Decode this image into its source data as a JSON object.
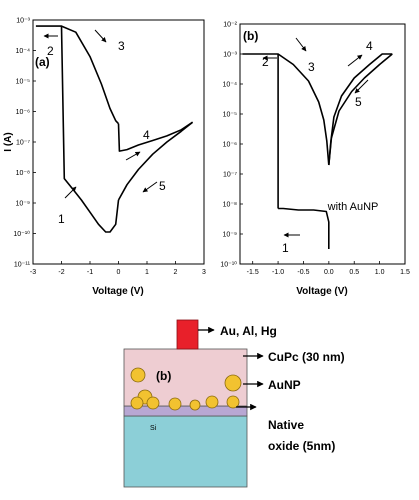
{
  "chart_data": [
    {
      "type": "line",
      "panel_label": "(a)",
      "xlabel": "Voltage (V)",
      "ylabel": "I (A)",
      "xlim": [
        -3,
        3
      ],
      "ylim_log10": [
        -11,
        -3
      ],
      "x_ticks": [
        "-3",
        "-2",
        "-1",
        "0",
        "1",
        "2",
        "3"
      ],
      "y_ticks": [
        "10⁻³",
        "10⁻⁴",
        "10⁻⁵",
        "10⁻⁶",
        "10⁻⁷",
        "10⁻⁸",
        "10⁻⁹",
        "10⁻¹⁰",
        "10⁻¹¹"
      ],
      "curve_labels": [
        "1",
        "2",
        "3",
        "4",
        "5"
      ],
      "series": [
        {
          "x": [
            -2.9,
            -2.1,
            -2.0,
            -1.9,
            -1.6,
            -1.3,
            -1.0,
            -0.7,
            -0.45,
            -0.3,
            -0.1,
            0.0
          ],
          "log10y": [
            -3.2,
            -3.2,
            -3.2,
            -8.2,
            -8.55,
            -8.9,
            -9.3,
            -9.7,
            -9.95,
            -9.95,
            -9.7,
            -8.9
          ]
        },
        {
          "x": [
            -2.0,
            -1.5,
            -1.0,
            -0.6,
            -0.3,
            -0.1,
            0.0
          ],
          "log10y": [
            -3.2,
            -3.4,
            -4.2,
            -5.1,
            -5.9,
            -6.3,
            -6.4
          ]
        },
        {
          "x": [
            0.0,
            0.03,
            0.3,
            0.7,
            1.2,
            1.7,
            2.2,
            2.6
          ],
          "log10y": [
            -6.4,
            -7.3,
            -7.25,
            -7.1,
            -6.95,
            -6.8,
            -6.6,
            -6.35
          ]
        },
        {
          "x": [
            0.0,
            0.3,
            0.7,
            1.2,
            1.7,
            2.2,
            2.6
          ],
          "log10y": [
            -8.9,
            -8.4,
            -7.9,
            -7.4,
            -7.0,
            -6.65,
            -6.35
          ]
        }
      ]
    },
    {
      "type": "line",
      "panel_label": "(b)",
      "annotation": "with AuNP",
      "xlabel": "Voltage (V)",
      "ylabel": "",
      "xlim": [
        -1.75,
        1.5
      ],
      "ylim_log10": [
        -10,
        -2
      ],
      "x_ticks": [
        "-1.5",
        "-1.0",
        "-0.5",
        "0.0",
        "0.5",
        "1.0",
        "1.5"
      ],
      "y_ticks": [
        "10⁻²",
        "10⁻³",
        "10⁻⁴",
        "10⁻⁵",
        "10⁻⁶",
        "10⁻⁷",
        "10⁻⁸",
        "10⁻⁹",
        "10⁻¹⁰"
      ],
      "curve_labels": [
        "1",
        "2",
        "3",
        "4",
        "5"
      ],
      "series": [
        {
          "x": [
            0.0,
            0.0,
            -0.05,
            -0.3,
            -0.6,
            -0.9,
            -1.0
          ],
          "log10y": [
            -9.5,
            -8.6,
            -8.25,
            -8.2,
            -8.2,
            -8.15,
            -8.15
          ]
        },
        {
          "x": [
            -1.0,
            -1.0,
            -1.7
          ],
          "log10y": [
            -8.15,
            -3.0,
            -3.0
          ]
        },
        {
          "x": [
            -1.0,
            -0.7,
            -0.4,
            -0.2,
            -0.1,
            -0.04,
            0.0
          ],
          "log10y": [
            -3.0,
            -3.35,
            -3.9,
            -4.6,
            -5.2,
            -5.9,
            -6.7
          ]
        },
        {
          "x": [
            0.0,
            0.04,
            0.1,
            0.25,
            0.5,
            0.8,
            1.05,
            1.25
          ],
          "log10y": [
            -6.7,
            -5.9,
            -5.1,
            -4.4,
            -3.8,
            -3.35,
            -3.0,
            -3.0
          ]
        },
        {
          "x": [
            0.0,
            0.05,
            0.2,
            0.45,
            0.7,
            1.0,
            1.25
          ],
          "log10y": [
            -6.7,
            -5.8,
            -4.9,
            -4.25,
            -3.8,
            -3.35,
            -3.0
          ]
        }
      ]
    }
  ],
  "device_diagram": {
    "panel_label": "(b)",
    "labels": {
      "electrode": "Au, Al, Hg",
      "cupc": "CuPc (30 nm)",
      "aunp": "AuNP",
      "native_line1": "Native",
      "native_line2": "oxide (5nm)",
      "si": "Si"
    },
    "colors": {
      "electrode": "#e8202a",
      "cupc": "#eecdd2",
      "nanoparticle": "#f2c230",
      "oxide": "#b8a7d3",
      "si": "#8ccfd7"
    }
  }
}
